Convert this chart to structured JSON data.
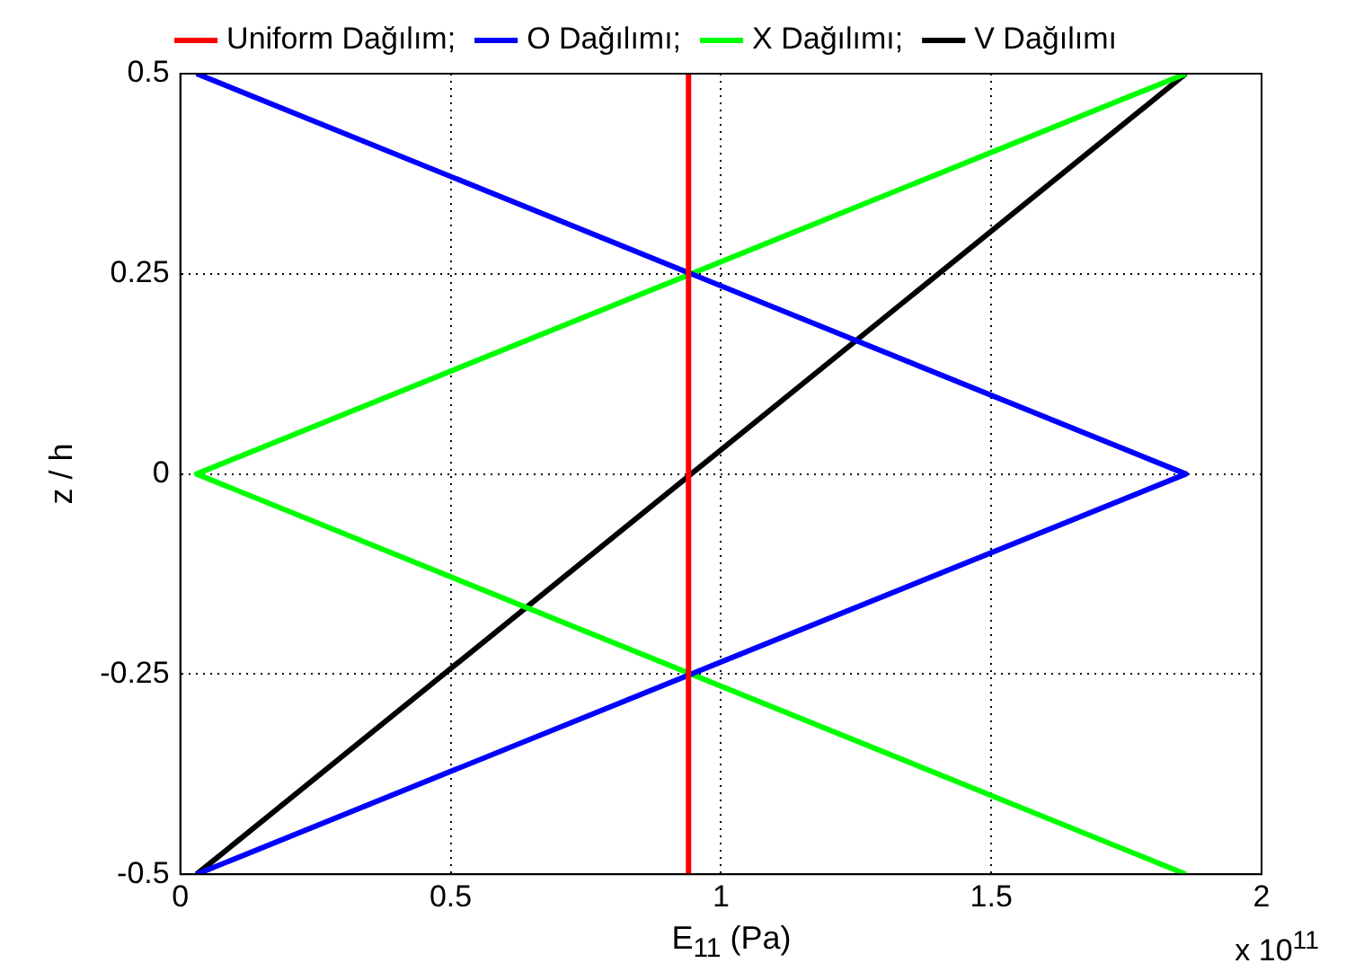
{
  "chart_data": {
    "type": "line",
    "xlabel": "E$_{11}$  (Pa)",
    "ylabel": "z / h",
    "xlim": [
      0,
      2
    ],
    "xticks": [
      0,
      0.5,
      1,
      1.5,
      2
    ],
    "ylim": [
      -0.5,
      0.5
    ],
    "yticks": [
      -0.5,
      -0.25,
      0,
      0.25,
      0.5
    ],
    "grid": true,
    "legend": "top",
    "marker": "none",
    "line_style": "solid",
    "annotations": [
      "x 10$^{11}$"
    ],
    "series": [
      {
        "name": "Uniform Dağılım;",
        "color": "#ff0000",
        "x": [
          0.94,
          0.94
        ],
        "values": [
          -0.5,
          0.5
        ]
      },
      {
        "name": "O Dağılımı;",
        "color": "#0000ff",
        "x": [
          0.03,
          1.86,
          0.03
        ],
        "values": [
          0.5,
          0,
          -0.5
        ]
      },
      {
        "name": "X Dağılımı;",
        "color": "#00ff00",
        "x": [
          1.86,
          0.03,
          1.86
        ],
        "values": [
          0.5,
          0,
          -0.5
        ]
      },
      {
        "name": "V Dağılımı",
        "color": "#000000",
        "x": [
          0.03,
          1.86
        ],
        "values": [
          -0.5,
          0.5
        ]
      }
    ]
  }
}
